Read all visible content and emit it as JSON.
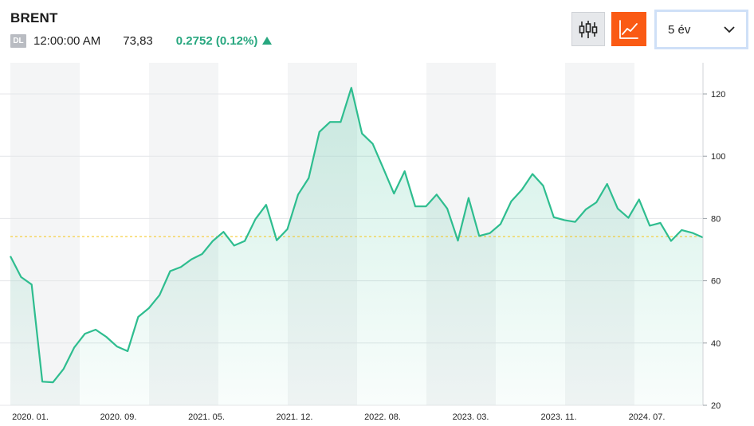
{
  "header": {
    "title": "BRENT",
    "badge": "DL",
    "time": "12:00:00 AM",
    "price": "73,83",
    "change": "0.2752 (0.12%)",
    "change_direction": "up",
    "change_color": "#27a77f"
  },
  "toolbar": {
    "candle_button_icon": "candlestick-icon",
    "line_button_icon": "line-chart-icon",
    "active_button": "line",
    "accent_color": "#fa5a14",
    "period_selected": "5 év"
  },
  "chart_data": {
    "type": "area",
    "title": "",
    "xlabel": "",
    "ylabel": "",
    "ylim": [
      20,
      130
    ],
    "yticks": [
      20,
      40,
      60,
      80,
      100,
      120
    ],
    "xtick_labels": [
      "2020. 01.",
      "2020. 09.",
      "2021. 05.",
      "2021. 12.",
      "2022. 08.",
      "2023. 03.",
      "2023. 11.",
      "2024. 07."
    ],
    "reference_line": 74.2,
    "line_color": "#2ebd8f",
    "grid": "horizontal",
    "series": [
      {
        "values": [
          67.9,
          61.2,
          58.8,
          27.6,
          27.4,
          31.7,
          38.6,
          43.0,
          44.3,
          42.0,
          38.9,
          37.4,
          48.4,
          51.2,
          55.4,
          63.1,
          64.4,
          66.9,
          68.6,
          72.8,
          75.7,
          71.3,
          72.8,
          79.8,
          84.4,
          73.0,
          76.6,
          87.7,
          93.0,
          107.8,
          111.0,
          111.0,
          122.0,
          107.3,
          104.0,
          96.1,
          88.0,
          95.2,
          83.9,
          83.9,
          87.7,
          83.2,
          72.9,
          86.6,
          74.4,
          75.3,
          78.2,
          85.5,
          89.2,
          94.3,
          90.5,
          80.4,
          79.5,
          78.9,
          82.9,
          85.2,
          91.1,
          83.2,
          80.2,
          86.1,
          77.7,
          78.6,
          72.8,
          76.3,
          75.4,
          73.9
        ]
      }
    ]
  }
}
